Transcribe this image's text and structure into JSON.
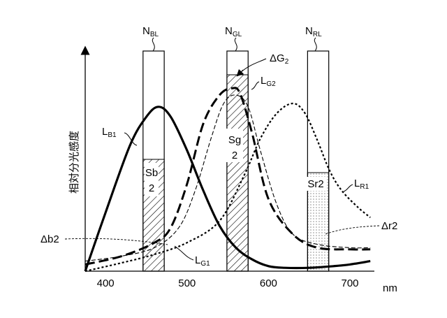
{
  "chart_data": {
    "type": "line",
    "ylabel": "相対分光感度",
    "xunit": "nm",
    "xticks": [
      400,
      500,
      600,
      700
    ],
    "xlim": [
      375,
      730
    ],
    "ylim": [
      0,
      1.2
    ],
    "filters": [
      {
        "base": "N",
        "sub": "BL",
        "band": [
          446,
          472
        ],
        "region": {
          "base": "Sb",
          "sub": "2"
        },
        "pattern": "hatch"
      },
      {
        "base": "N",
        "sub": "GL",
        "band": [
          549,
          575
        ],
        "region": {
          "base": "Sg",
          "sub": "2"
        },
        "pattern": "hatch"
      },
      {
        "base": "N",
        "sub": "RL",
        "band": [
          648,
          674
        ],
        "region": {
          "base": "Sr2",
          "sub": ""
        },
        "pattern": "dots"
      }
    ],
    "series": [
      {
        "base": "L",
        "sub": "B1",
        "style": "solid-thick",
        "x": [
          375,
          400,
          430,
          450,
          465,
          480,
          500,
          520,
          540,
          560,
          580,
          600,
          620,
          650,
          680,
          700,
          725
        ],
        "y": [
          0.0,
          0.35,
          0.75,
          0.92,
          0.98,
          0.92,
          0.72,
          0.48,
          0.27,
          0.14,
          0.07,
          0.03,
          0.02,
          0.02,
          0.03,
          0.04,
          0.06
        ]
      },
      {
        "base": "L",
        "sub": "G1",
        "style": "dashed-thin",
        "x": [
          375,
          420,
          460,
          490,
          510,
          530,
          545,
          560,
          575,
          590,
          610,
          630,
          660,
          700,
          725
        ],
        "y": [
          0.06,
          0.09,
          0.14,
          0.26,
          0.48,
          0.8,
          1.0,
          1.05,
          0.98,
          0.72,
          0.4,
          0.22,
          0.16,
          0.14,
          0.14
        ]
      },
      {
        "base": "L",
        "sub": "G2",
        "style": "dashed-thick",
        "x": [
          375,
          420,
          460,
          480,
          500,
          520,
          540,
          555,
          565,
          580,
          600,
          630,
          660,
          700,
          725
        ],
        "y": [
          0.04,
          0.09,
          0.17,
          0.26,
          0.52,
          0.88,
          1.05,
          1.09,
          1.06,
          0.82,
          0.43,
          0.22,
          0.14,
          0.13,
          0.13
        ]
      },
      {
        "base": "L",
        "sub": "R1",
        "style": "dotted",
        "x": [
          375,
          420,
          460,
          500,
          540,
          570,
          590,
          610,
          630,
          645,
          660,
          675,
          690,
          710,
          725
        ],
        "y": [
          0.0,
          0.05,
          0.1,
          0.17,
          0.3,
          0.57,
          0.79,
          0.94,
          1.0,
          0.94,
          0.78,
          0.6,
          0.48,
          0.38,
          0.32
        ]
      }
    ],
    "annotations": {
      "delta_b2": "Δb2",
      "delta_g2": {
        "base": "ΔG",
        "sub": "2"
      },
      "delta_r2": "Δr2"
    }
  }
}
